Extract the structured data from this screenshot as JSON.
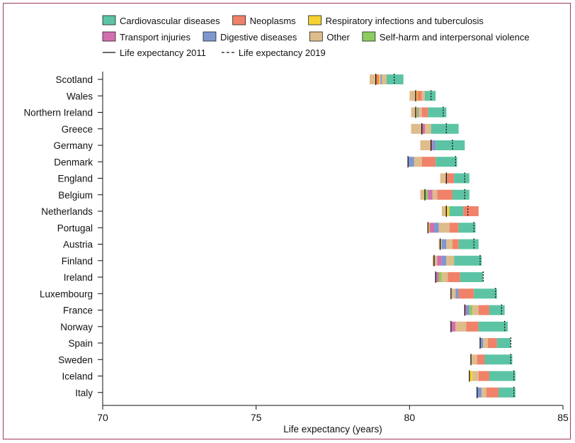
{
  "chart_data": {
    "type": "bar",
    "subtype": "stacked-horizontal-decomposition",
    "xlabel": "Life expectancy (years)",
    "xlim": [
      70,
      85
    ],
    "xticks": [
      70,
      75,
      80,
      85
    ],
    "legend": {
      "placement": "top",
      "causes": [
        {
          "key": "cvd",
          "label": "Cardiovascular diseases",
          "color": "#5cc4a4"
        },
        {
          "key": "neo",
          "label": "Neoplasms",
          "color": "#f0826a"
        },
        {
          "key": "resp",
          "label": "Respiratory infections and tuberculosis",
          "color": "#f5d132"
        },
        {
          "key": "trans",
          "label": "Transport injuries",
          "color": "#d46faf"
        },
        {
          "key": "dig",
          "label": "Digestive diseases",
          "color": "#7f97cf"
        },
        {
          "key": "oth",
          "label": "Other",
          "color": "#dfbc8c"
        },
        {
          "key": "self",
          "label": "Self-harm and interpersonal violence",
          "color": "#8ccc60"
        }
      ],
      "lines": [
        {
          "key": "le2011",
          "label": "Life expectancy 2011",
          "style": "solid"
        },
        {
          "key": "le2019",
          "label": "Life expectancy 2019",
          "style": "dashed"
        }
      ]
    },
    "series": [
      {
        "country": "Scotland",
        "le2011": 78.9,
        "le2019": 79.5,
        "segments": [
          [
            "oth",
            78.7,
            78.9
          ],
          [
            "neo",
            78.9,
            79.0
          ],
          [
            "resp",
            79.0,
            79.05
          ],
          [
            "dig",
            79.05,
            79.1
          ],
          [
            "oth",
            79.1,
            79.25
          ],
          [
            "cvd",
            79.25,
            79.8
          ]
        ]
      },
      {
        "country": "Wales",
        "le2011": 80.2,
        "le2019": 80.7,
        "segments": [
          [
            "oth",
            80.0,
            80.2
          ],
          [
            "resp",
            80.2,
            80.25
          ],
          [
            "neo",
            80.25,
            80.4
          ],
          [
            "oth",
            80.4,
            80.5
          ],
          [
            "cvd",
            80.5,
            80.85
          ]
        ]
      },
      {
        "country": "Northern Ireland",
        "le2011": 80.2,
        "le2019": 81.1,
        "segments": [
          [
            "oth",
            80.05,
            80.2
          ],
          [
            "resp",
            80.2,
            80.25
          ],
          [
            "dig",
            80.25,
            80.3
          ],
          [
            "oth",
            80.3,
            80.4
          ],
          [
            "neo",
            80.4,
            80.6
          ],
          [
            "cvd",
            80.6,
            81.2
          ]
        ]
      },
      {
        "country": "Greece",
        "le2011": 80.4,
        "le2019": 81.2,
        "segments": [
          [
            "oth",
            80.05,
            80.4
          ],
          [
            "trans",
            80.4,
            80.5
          ],
          [
            "oth",
            80.5,
            80.7
          ],
          [
            "cvd",
            80.7,
            81.6
          ]
        ]
      },
      {
        "country": "Germany",
        "le2011": 80.7,
        "le2019": 81.4,
        "segments": [
          [
            "oth",
            80.35,
            80.7
          ],
          [
            "trans",
            80.7,
            80.75
          ],
          [
            "dig",
            80.75,
            80.85
          ],
          [
            "cvd",
            80.85,
            81.8
          ]
        ]
      },
      {
        "country": "Denmark",
        "le2011": 79.95,
        "le2019": 81.5,
        "segments": [
          [
            "dig",
            79.95,
            80.15
          ],
          [
            "oth",
            80.15,
            80.4
          ],
          [
            "neo",
            80.4,
            80.85
          ],
          [
            "cvd",
            80.85,
            81.55
          ]
        ]
      },
      {
        "country": "England",
        "le2011": 81.2,
        "le2019": 81.8,
        "segments": [
          [
            "oth",
            81.0,
            81.2
          ],
          [
            "neo",
            81.2,
            81.45
          ],
          [
            "cvd",
            81.45,
            81.95
          ]
        ]
      },
      {
        "country": "Belgium",
        "le2011": 80.5,
        "le2019": 81.8,
        "segments": [
          [
            "oth",
            80.35,
            80.5
          ],
          [
            "self",
            80.5,
            80.6
          ],
          [
            "trans",
            80.6,
            80.75
          ],
          [
            "oth",
            80.75,
            80.9
          ],
          [
            "neo",
            80.9,
            81.4
          ],
          [
            "cvd",
            81.4,
            81.95
          ]
        ]
      },
      {
        "country": "Netherlands",
        "le2011": 81.2,
        "le2019": 81.9,
        "segments": [
          [
            "oth",
            81.05,
            81.2
          ],
          [
            "resp",
            81.2,
            81.3
          ],
          [
            "cvd",
            81.3,
            81.75
          ],
          [
            "neo",
            81.75,
            82.25
          ]
        ]
      },
      {
        "country": "Portugal",
        "le2011": 80.6,
        "le2019": 82.1,
        "segments": [
          [
            "resp",
            80.6,
            80.65
          ],
          [
            "trans",
            80.65,
            80.8
          ],
          [
            "dig",
            80.8,
            80.95
          ],
          [
            "oth",
            80.95,
            81.3
          ],
          [
            "neo",
            81.3,
            81.6
          ],
          [
            "cvd",
            81.6,
            82.15
          ]
        ]
      },
      {
        "country": "Austria",
        "le2011": 81.0,
        "le2019": 82.1,
        "segments": [
          [
            "oth",
            80.95,
            81.05
          ],
          [
            "dig",
            81.05,
            81.2
          ],
          [
            "oth",
            81.2,
            81.4
          ],
          [
            "neo",
            81.4,
            81.6
          ],
          [
            "cvd",
            81.6,
            82.25
          ]
        ]
      },
      {
        "country": "Finland",
        "le2011": 80.8,
        "le2019": 82.3,
        "segments": [
          [
            "oth",
            80.75,
            80.9
          ],
          [
            "trans",
            80.9,
            81.05
          ],
          [
            "dig",
            81.05,
            81.2
          ],
          [
            "oth",
            81.2,
            81.45
          ],
          [
            "cvd",
            81.45,
            82.35
          ]
        ]
      },
      {
        "country": "Ireland",
        "le2011": 80.85,
        "le2019": 82.4,
        "segments": [
          [
            "trans",
            80.85,
            80.95
          ],
          [
            "self",
            80.95,
            81.05
          ],
          [
            "oth",
            81.05,
            81.25
          ],
          [
            "neo",
            81.25,
            81.65
          ],
          [
            "cvd",
            81.65,
            82.4
          ]
        ]
      },
      {
        "country": "Luxembourg",
        "le2011": 81.35,
        "le2019": 82.8,
        "segments": [
          [
            "oth",
            81.35,
            81.5
          ],
          [
            "dig",
            81.5,
            81.6
          ],
          [
            "neo",
            81.6,
            82.1
          ],
          [
            "cvd",
            82.1,
            82.85
          ]
        ]
      },
      {
        "country": "France",
        "le2011": 81.8,
        "le2019": 83.0,
        "segments": [
          [
            "trans",
            81.8,
            81.85
          ],
          [
            "dig",
            81.85,
            81.95
          ],
          [
            "self",
            81.95,
            82.05
          ],
          [
            "oth",
            82.05,
            82.25
          ],
          [
            "neo",
            82.25,
            82.6
          ],
          [
            "cvd",
            82.6,
            83.1
          ]
        ]
      },
      {
        "country": "Norway",
        "le2011": 81.35,
        "le2019": 83.1,
        "segments": [
          [
            "trans",
            81.35,
            81.5
          ],
          [
            "oth",
            81.5,
            81.85
          ],
          [
            "neo",
            81.85,
            82.25
          ],
          [
            "cvd",
            82.25,
            83.2
          ]
        ]
      },
      {
        "country": "Spain",
        "le2011": 82.3,
        "le2019": 83.3,
        "segments": [
          [
            "dig",
            82.3,
            82.4
          ],
          [
            "oth",
            82.4,
            82.55
          ],
          [
            "neo",
            82.55,
            82.85
          ],
          [
            "cvd",
            82.85,
            83.3
          ]
        ]
      },
      {
        "country": "Sweden",
        "le2011": 82.0,
        "le2019": 83.3,
        "segments": [
          [
            "oth",
            82.0,
            82.2
          ],
          [
            "neo",
            82.2,
            82.45
          ],
          [
            "cvd",
            82.45,
            83.35
          ]
        ]
      },
      {
        "country": "Iceland",
        "le2011": 81.95,
        "le2019": 83.4,
        "segments": [
          [
            "resp",
            81.95,
            82.05
          ],
          [
            "oth",
            82.05,
            82.25
          ],
          [
            "neo",
            82.25,
            82.6
          ],
          [
            "cvd",
            82.6,
            83.45
          ]
        ]
      },
      {
        "country": "Italy",
        "le2011": 82.2,
        "le2019": 83.4,
        "segments": [
          [
            "dig",
            82.2,
            82.35
          ],
          [
            "oth",
            82.35,
            82.5
          ],
          [
            "neo",
            82.5,
            82.9
          ],
          [
            "cvd",
            82.9,
            83.45
          ]
        ]
      }
    ]
  }
}
